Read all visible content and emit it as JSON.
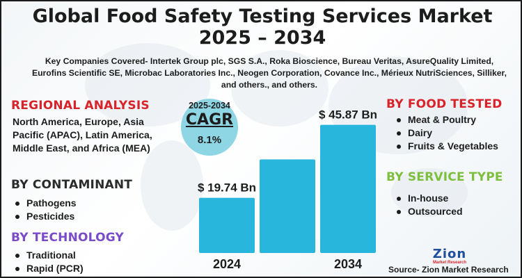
{
  "title_line1": "Global Food Safety Testing Services Market",
  "title_line2": "2025 – 2034",
  "companies_text": "Key Companies Covered- Intertek Group plc, SGS S.A., Roka Bioscience, Bureau Veritas, AsureQuality Limited, Eurofins Scientific SE, Microbac Laboratories Inc., Neogen Corporation, Covance Inc., Mérieux NutriSciences, Silliker, and others., and others.",
  "regional": {
    "heading": "REGIONAL ANALYSIS",
    "text": "North America, Europe, Asia Pacific (APAC), Latin America, Middle East, and Africa (MEA)"
  },
  "contaminant": {
    "heading": "BY CONTAMINANT",
    "items": [
      "Pathogens",
      "Pesticides"
    ]
  },
  "technology": {
    "heading": "BY TECHNOLOGY",
    "items": [
      "Traditional",
      "Rapid (PCR)"
    ]
  },
  "food_tested": {
    "heading": "BY FOOD TESTED",
    "items": [
      "Meat & Poultry",
      "Dairy",
      "Fruits & Vegetables"
    ]
  },
  "service_type": {
    "heading": "BY SERVICE TYPE",
    "items": [
      "In-house",
      "Outsourced"
    ]
  },
  "cagr": {
    "period": "2025-2034",
    "label": "CAGR",
    "value": "8.1%"
  },
  "logo": {
    "main": "Zion",
    "sub": "Market Research"
  },
  "source": "Source- Zion Market Research",
  "colors": {
    "bar": "#29b6dc",
    "cagr_circle": "#8ed6e4",
    "red": "#d8232a",
    "purple": "#7a4bc9",
    "green": "#7cbf3c"
  },
  "chart_data": {
    "type": "bar",
    "categories": [
      "2024",
      "",
      "2034"
    ],
    "values": [
      19.74,
      33.5,
      45.87
    ],
    "data_labels": [
      "$ 19.74 Bn",
      "",
      "$ 45.87 Bn"
    ],
    "ylim": [
      0,
      50
    ]
  }
}
